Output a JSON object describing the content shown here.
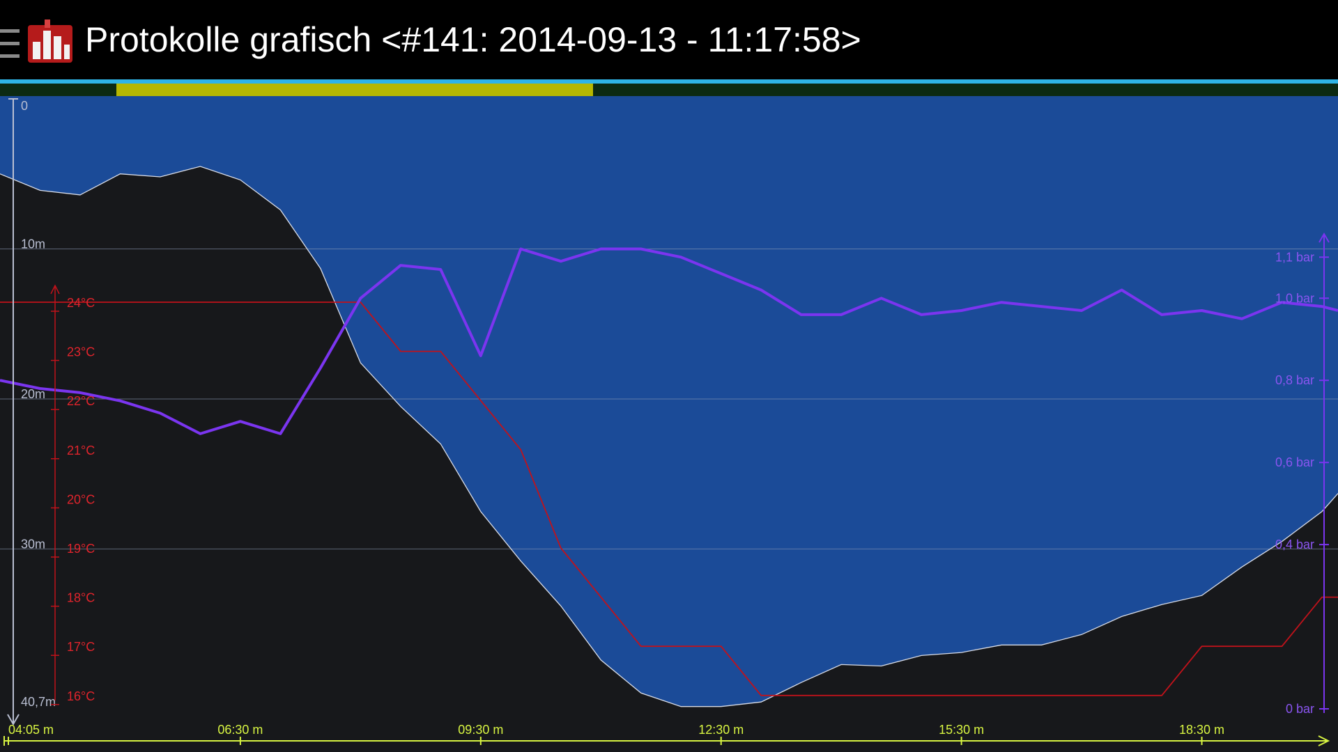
{
  "header": {
    "title": "Protokolle grafisch <#141: 2014-09-13 - 11:17:58>",
    "menu_icon": "hamburger-menu-icon",
    "app_icon": "bar-chart-icon"
  },
  "timeline": {
    "selection_start": 0.087,
    "selection_end": 0.443,
    "accent_color": "#2fb4e6",
    "selection_color": "#b6b700"
  },
  "colors": {
    "water": "#1b4b98",
    "ground": "#17181b",
    "temperature": "#c1121b",
    "pressure": "#7b35f0",
    "time_axis": "#d8f542",
    "depth_axis": "#b9bfd2"
  },
  "chart_data": {
    "type": "area",
    "x_labels": [
      "04:05 m",
      "06:30 m",
      "09:30 m",
      "12:30 m",
      "15:30 m",
      "18:30 m"
    ],
    "x_ticks": [
      3.5,
      6.5,
      9.5,
      12.5,
      15.5,
      18.5
    ],
    "xlim": [
      3.5,
      20.2
    ],
    "depth_axis": {
      "labels": [
        "0",
        "10m",
        "20m",
        "30m",
        "40,7m"
      ],
      "values": [
        0,
        10,
        20,
        30,
        40.7
      ],
      "ylim": [
        0,
        40.7
      ]
    },
    "temperature_axis": {
      "labels": [
        "24°C",
        "23°C",
        "22°C",
        "21°C",
        "20°C",
        "19°C",
        "18°C",
        "17°C",
        "16°C"
      ],
      "values": [
        24,
        23,
        22,
        21,
        20,
        19,
        18,
        17,
        16
      ]
    },
    "pressure_axis": {
      "labels": [
        "1,1 bar",
        "1,0 bar",
        "0,8 bar",
        "0,6 bar",
        "0,4 bar",
        "0 bar"
      ],
      "values": [
        1.1,
        1.0,
        0.8,
        0.6,
        0.4,
        0
      ]
    },
    "series": [
      {
        "key": "depth",
        "x": [
          3.5,
          4.0,
          4.5,
          5.0,
          5.5,
          6.0,
          6.5,
          7.0,
          7.5,
          8.0,
          8.5,
          9.0,
          9.5,
          10.0,
          10.5,
          11.0,
          11.5,
          12.0,
          12.5,
          13.0,
          13.5,
          14.0,
          14.5,
          15.0,
          15.5,
          16.0,
          16.5,
          17.0,
          17.5,
          18.0,
          18.5,
          19.0,
          19.5,
          20.0,
          20.2
        ],
        "y": [
          5.0,
          6.1,
          6.4,
          5.0,
          5.2,
          4.5,
          5.4,
          7.4,
          11.3,
          17.6,
          20.5,
          23.0,
          27.5,
          30.8,
          33.8,
          37.4,
          39.6,
          40.5,
          40.5,
          40.2,
          38.9,
          37.7,
          37.8,
          37.1,
          36.9,
          36.4,
          36.4,
          35.7,
          34.5,
          33.7,
          33.1,
          31.2,
          29.5,
          27.5,
          26.3
        ]
      },
      {
        "key": "temperature",
        "x": [
          3.5,
          8.0,
          8.5,
          9.0,
          9.5,
          10.0,
          10.5,
          11.0,
          11.5,
          12.0,
          12.5,
          13.0,
          18.0,
          18.5,
          19.0,
          19.5,
          20.0,
          20.2
        ],
        "y": [
          24.0,
          24.0,
          23.0,
          23.0,
          22.0,
          21.0,
          19.0,
          18.0,
          17.0,
          17.0,
          17.0,
          16.0,
          16.0,
          17.0,
          17.0,
          17.0,
          18.0,
          18.0
        ]
      },
      {
        "key": "pressure",
        "x": [
          3.5,
          4.0,
          4.5,
          5.0,
          5.5,
          6.0,
          6.5,
          7.0,
          7.5,
          8.0,
          8.5,
          9.0,
          9.5,
          10.0,
          10.5,
          11.0,
          11.5,
          12.0,
          12.5,
          13.0,
          13.5,
          14.0,
          14.5,
          15.0,
          15.5,
          16.0,
          16.5,
          17.0,
          17.5,
          18.0,
          18.5,
          19.0,
          19.5,
          20.0,
          20.2
        ],
        "y": [
          0.8,
          0.78,
          0.77,
          0.75,
          0.72,
          0.67,
          0.7,
          0.67,
          0.83,
          1.0,
          1.08,
          1.07,
          0.86,
          1.12,
          1.09,
          1.12,
          1.12,
          1.1,
          1.06,
          1.02,
          0.96,
          0.96,
          1.0,
          0.96,
          0.97,
          0.99,
          0.98,
          0.97,
          1.02,
          0.96,
          0.97,
          0.95,
          0.99,
          0.98,
          0.97
        ]
      }
    ],
    "grid": true
  }
}
